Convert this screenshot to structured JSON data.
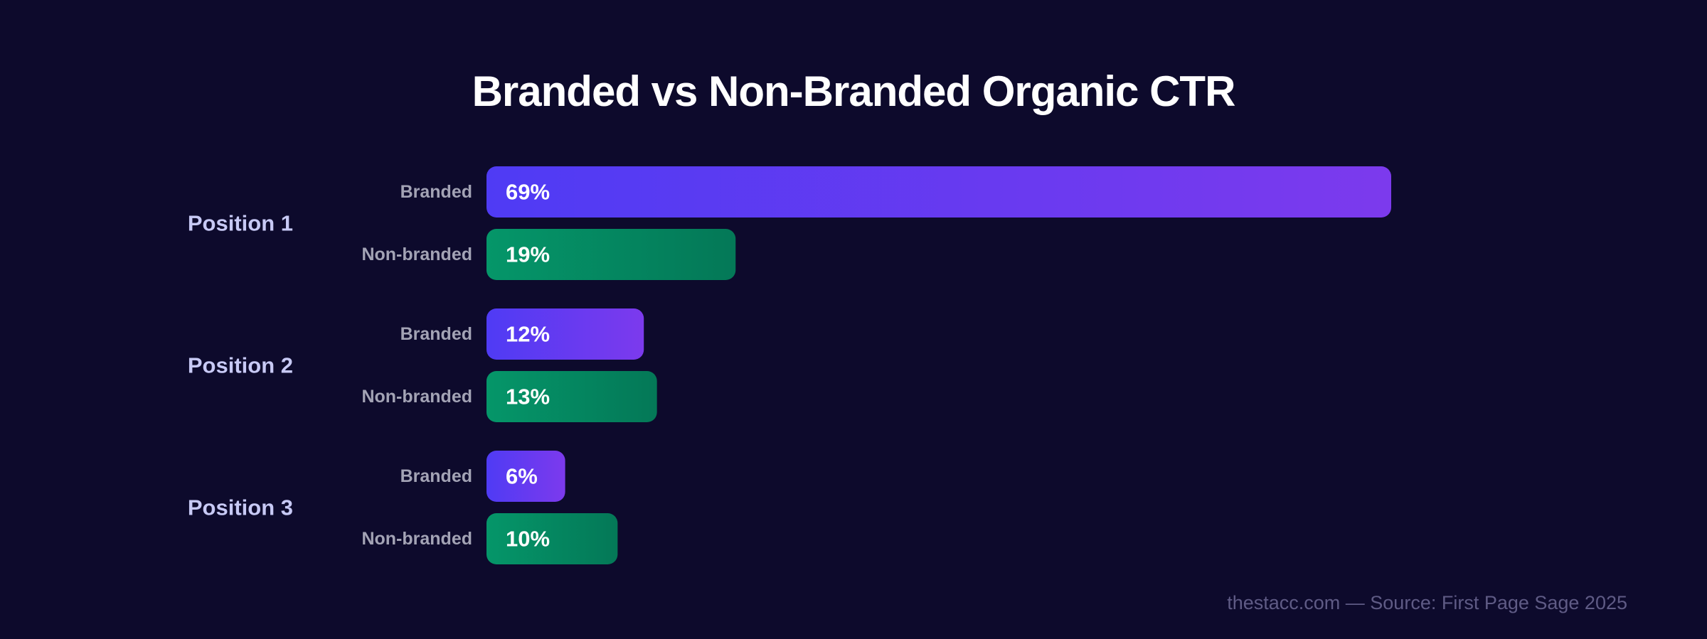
{
  "colors": {
    "background": "#0d0a2c",
    "branded_start": "#4f3bf4",
    "branded_end": "#7c3aed",
    "nonbranded_start": "#059669",
    "nonbranded_end": "#047857",
    "group_label": "#c7c9f5",
    "series_label": "#a3a3b5",
    "value_label": "#ffffff",
    "footer": "#5f5b85"
  },
  "chart_data": {
    "type": "bar",
    "orientation": "horizontal",
    "title": "Branded vs Non-Branded Organic CTR",
    "categories": [
      "Position 1",
      "Position 2",
      "Position 3"
    ],
    "series": [
      {
        "name": "Branded",
        "values": [
          69,
          12,
          6
        ]
      },
      {
        "name": "Non-branded",
        "values": [
          19,
          13,
          10
        ]
      }
    ],
    "value_suffix": "%",
    "xlim": [
      0,
      69
    ],
    "grid": false,
    "legend": "none"
  },
  "footer": {
    "text": "thestacc.com — Source: First Page Sage 2025"
  }
}
